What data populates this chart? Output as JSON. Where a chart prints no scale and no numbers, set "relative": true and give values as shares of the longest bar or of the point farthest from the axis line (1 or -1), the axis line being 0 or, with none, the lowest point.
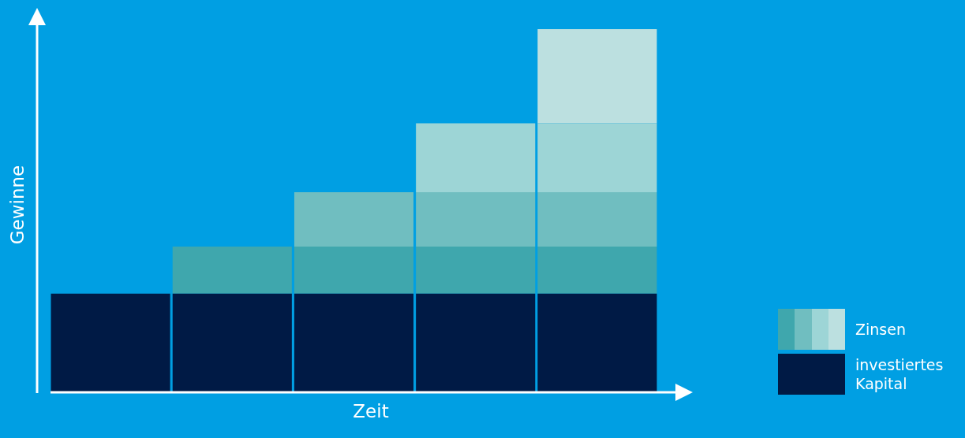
{
  "chart_data": {
    "type": "bar",
    "stacked": true,
    "relative": true,
    "xlabel": "Zeit",
    "ylabel": "Gewinne",
    "legend": "bottom right",
    "categories": [
      null,
      null,
      null,
      null,
      null
    ],
    "series": [
      {
        "name": "investiertes Kapital",
        "color": "#001a45",
        "values": [
          0.27,
          0.27,
          0.27,
          0.27,
          0.27
        ]
      },
      {
        "color": "#3fa7ad",
        "values": [
          null,
          0.13,
          0.13,
          0.13,
          0.13
        ]
      },
      {
        "color": "#70bec0",
        "values": [
          null,
          null,
          0.15,
          0.15,
          0.15
        ]
      },
      {
        "color": "#9dd5d6",
        "values": [
          null,
          null,
          null,
          0.19,
          0.19
        ]
      },
      {
        "name": "Zinsen",
        "color": "#bce0e0",
        "values": [
          null,
          null,
          null,
          null,
          0.26
        ]
      }
    ]
  }
}
